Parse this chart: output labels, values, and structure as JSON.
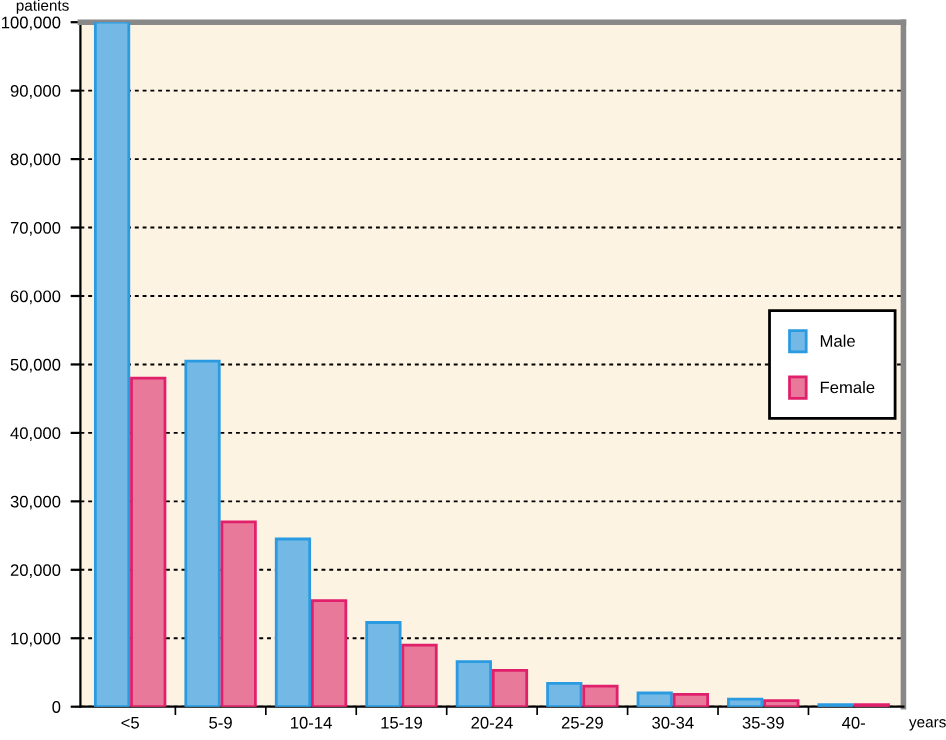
{
  "chart_data": {
    "type": "bar",
    "xlabel": "years",
    "ylabel": "patients",
    "categories": [
      "<5",
      "5-9",
      "10-14",
      "15-19",
      "20-24",
      "25-29",
      "30-34",
      "35-39",
      "40-"
    ],
    "series": [
      {
        "name": "Male",
        "color": "#74b8e6",
        "values": [
          100000,
          50500,
          24500,
          12300,
          6600,
          3400,
          2000,
          1100,
          300
        ]
      },
      {
        "name": "Female",
        "color": "#e8799a",
        "values": [
          48000,
          27000,
          15500,
          9000,
          5300,
          3000,
          1800,
          900,
          300
        ]
      }
    ],
    "ylim": [
      0,
      100000
    ],
    "yticks": [
      {
        "value": 0,
        "label": "0"
      },
      {
        "value": 10000,
        "label": "10,000"
      },
      {
        "value": 20000,
        "label": "20,000"
      },
      {
        "value": 30000,
        "label": "30,000"
      },
      {
        "value": 40000,
        "label": "40,000"
      },
      {
        "value": 50000,
        "label": "50,000"
      },
      {
        "value": 60000,
        "label": "60,000"
      },
      {
        "value": 70000,
        "label": "70,000"
      },
      {
        "value": 80000,
        "label": "80,000"
      },
      {
        "value": 90000,
        "label": "90,000"
      },
      {
        "value": 100000,
        "label": "100,000"
      }
    ],
    "grid": "y",
    "legend": "center right"
  }
}
